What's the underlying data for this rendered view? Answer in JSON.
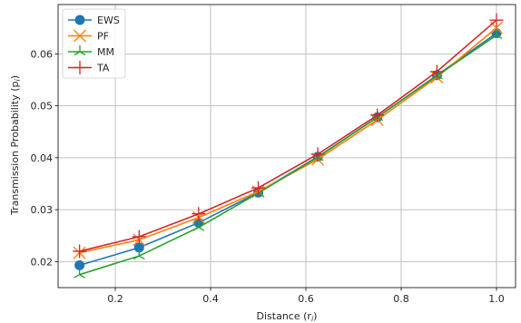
{
  "chart_data": {
    "type": "line",
    "xlabel": "Distance (r",
    "xlabel_sub": "i",
    "xlabel_close": ")",
    "ylabel": "Transmission Probability (p",
    "ylabel_sub": "i",
    "ylabel_close": ")",
    "xlim": [
      0.08,
      1.04
    ],
    "ylim": [
      0.015,
      0.0695
    ],
    "xticks": [
      0.2,
      0.4,
      0.6,
      0.8,
      1.0
    ],
    "xtick_labels": [
      "0.2",
      "0.4",
      "0.6",
      "0.8",
      "1.0"
    ],
    "yticks": [
      0.02,
      0.03,
      0.04,
      0.05,
      0.06
    ],
    "ytick_labels": [
      "0.02",
      "0.03",
      "0.04",
      "0.05",
      "0.06"
    ],
    "grid": true,
    "legend_position": "top-left",
    "x": [
      0.125,
      0.25,
      0.375,
      0.5,
      0.625,
      0.75,
      0.875,
      1.0
    ],
    "series": [
      {
        "name": "EWS",
        "marker": "circle",
        "color": "#1f77b4",
        "values": [
          0.0193,
          0.0227,
          0.0275,
          0.0333,
          0.0402,
          0.0478,
          0.0559,
          0.064
        ]
      },
      {
        "name": "PF",
        "marker": "x",
        "color": "#ff7f0e",
        "values": [
          0.0217,
          0.0242,
          0.0285,
          0.0335,
          0.0397,
          0.0473,
          0.0555,
          0.065
        ]
      },
      {
        "name": "MM",
        "marker": "tri",
        "color": "#2ca02c",
        "values": [
          0.0175,
          0.0211,
          0.0266,
          0.0332,
          0.0401,
          0.0478,
          0.0558,
          0.0636
        ]
      },
      {
        "name": "TA",
        "marker": "plus",
        "color": "#d62728",
        "values": [
          0.022,
          0.0248,
          0.0292,
          0.0342,
          0.0407,
          0.0482,
          0.0566,
          0.0665
        ]
      }
    ]
  }
}
